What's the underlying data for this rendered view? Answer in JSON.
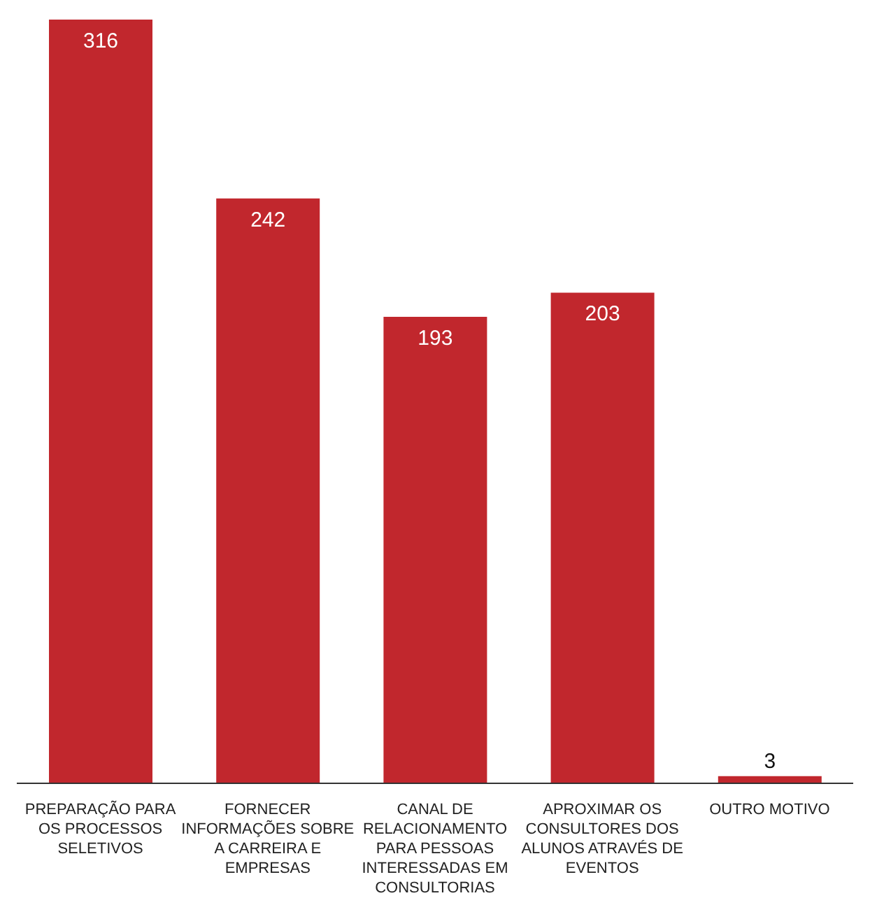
{
  "chart_data": {
    "type": "bar",
    "categories": [
      "PREPARAÇÃO PARA OS PROCESSOS SELETIVOS",
      "FORNECER INFORMAÇÕES SOBRE A CARREIRA E EMPRESAS",
      "CANAL DE RELACIONAMENTO PARA PESSOAS INTERESSADAS EM CONSULTORIAS",
      "APROXIMAR OS CONSULTORES DOS ALUNOS ATRAVÉS DE EVENTOS",
      "OUTRO MOTIVO"
    ],
    "values": [
      316,
      242,
      193,
      203,
      3
    ],
    "color": "#c1272d",
    "data_labels": true,
    "grid": false,
    "legend": false
  }
}
